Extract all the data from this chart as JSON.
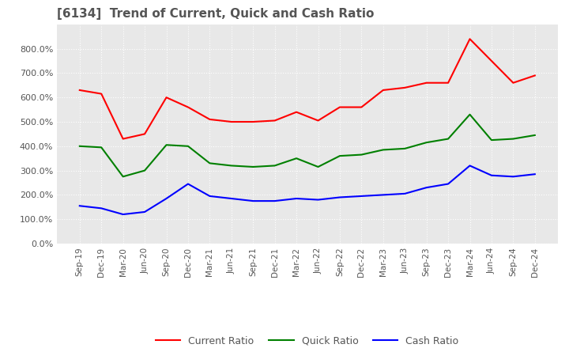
{
  "title": "[6134]  Trend of Current, Quick and Cash Ratio",
  "title_fontsize": 11,
  "title_color": "#555555",
  "background_color": "#ffffff",
  "plot_background_color": "#e8e8e8",
  "grid_color": "#ffffff",
  "ylim": [
    0,
    900
  ],
  "yticks": [
    0,
    100,
    200,
    300,
    400,
    500,
    600,
    700,
    800
  ],
  "x_labels": [
    "Sep-19",
    "Dec-19",
    "Mar-20",
    "Jun-20",
    "Sep-20",
    "Dec-20",
    "Mar-21",
    "Jun-21",
    "Sep-21",
    "Dec-21",
    "Mar-22",
    "Jun-22",
    "Sep-22",
    "Dec-22",
    "Mar-23",
    "Jun-23",
    "Sep-23",
    "Dec-23",
    "Mar-24",
    "Jun-24",
    "Sep-24",
    "Dec-24"
  ],
  "current_ratio": [
    630,
    615,
    430,
    450,
    600,
    560,
    510,
    500,
    500,
    505,
    540,
    505,
    560,
    560,
    630,
    640,
    660,
    660,
    840,
    750,
    660,
    690
  ],
  "quick_ratio": [
    400,
    395,
    275,
    300,
    405,
    400,
    330,
    320,
    315,
    320,
    350,
    315,
    360,
    365,
    385,
    390,
    415,
    430,
    530,
    425,
    430,
    445
  ],
  "cash_ratio": [
    155,
    145,
    120,
    130,
    185,
    245,
    195,
    185,
    175,
    175,
    185,
    180,
    190,
    195,
    200,
    205,
    230,
    245,
    320,
    280,
    275,
    285
  ],
  "current_color": "#ff0000",
  "quick_color": "#008000",
  "cash_color": "#0000ff",
  "line_width": 1.5,
  "legend_labels": [
    "Current Ratio",
    "Quick Ratio",
    "Cash Ratio"
  ]
}
